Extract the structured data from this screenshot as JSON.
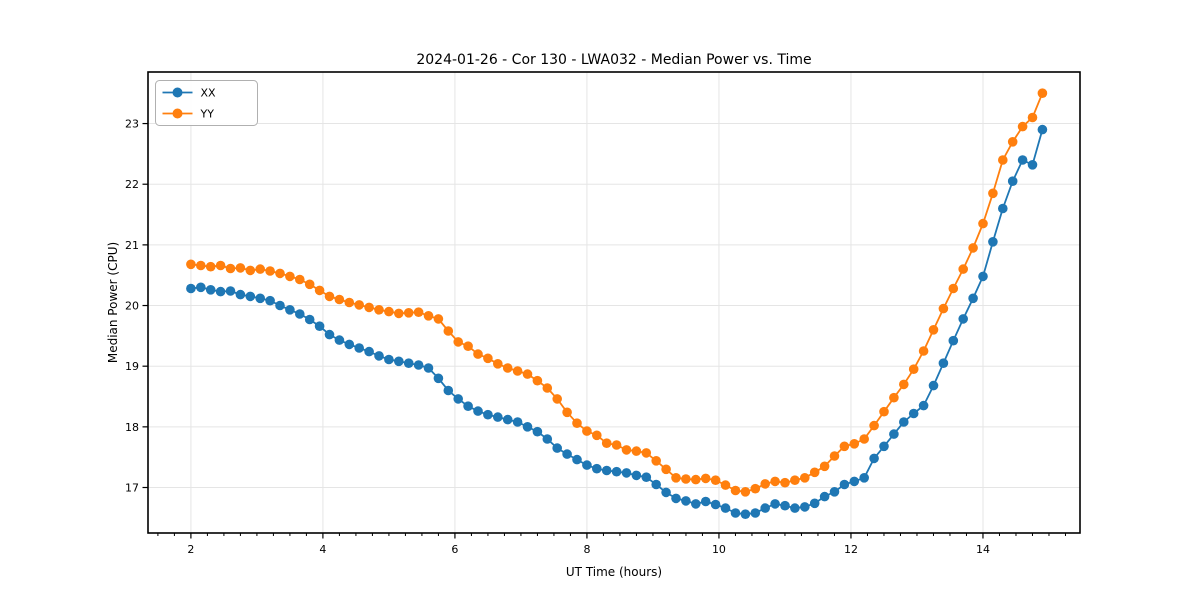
{
  "figure": {
    "background": "#ffffff"
  },
  "chart_data": {
    "type": "line",
    "title": "2024-01-26 - Cor 130 - LWA032 - Median Power vs. Time",
    "xlabel": "UT Time (hours)",
    "ylabel": "Median Power (CPU)",
    "xlim": [
      1.35,
      15.47
    ],
    "ylim": [
      16.25,
      23.85
    ],
    "xticks": [
      2,
      4,
      6,
      8,
      10,
      12,
      14
    ],
    "yticks": [
      17,
      18,
      19,
      20,
      21,
      22,
      23
    ],
    "x_minor_tick_step": 0.25,
    "grid": true,
    "grid_color": "#e5e5e5",
    "legend": {
      "position": "upper-left",
      "frame": true,
      "labels": [
        "XX",
        "YY"
      ]
    },
    "marker": "circle",
    "marker_size": 9.6,
    "line_width": 1.8,
    "x": [
      2,
      2.15,
      2.3,
      2.45,
      2.6,
      2.75,
      2.9,
      3.05,
      3.2,
      3.35,
      3.5,
      3.65,
      3.8,
      3.95,
      4.1,
      4.25,
      4.4,
      4.55,
      4.7,
      4.85,
      5,
      5.15,
      5.3,
      5.45,
      5.6,
      5.75,
      5.9,
      6.05,
      6.2,
      6.35,
      6.5,
      6.65,
      6.8,
      6.95,
      7.1,
      7.25,
      7.4,
      7.55,
      7.7,
      7.85,
      8,
      8.15,
      8.3,
      8.45,
      8.6,
      8.75,
      8.9,
      9.05,
      9.2,
      9.35,
      9.5,
      9.65,
      9.8,
      9.95,
      10.1,
      10.25,
      10.4,
      10.55,
      10.7,
      10.85,
      11,
      11.15,
      11.3,
      11.45,
      11.6,
      11.75,
      11.9,
      12.05,
      12.2,
      12.35,
      12.5,
      12.65,
      12.8,
      12.95,
      13.1,
      13.25,
      13.4,
      13.55,
      13.7,
      13.85,
      14,
      14.15,
      14.3,
      14.45,
      14.6,
      14.75,
      14.9
    ],
    "series": [
      {
        "name": "XX",
        "color": "#1f77b4",
        "values": [
          20.28,
          20.3,
          20.26,
          20.23,
          20.24,
          20.18,
          20.15,
          20.12,
          20.08,
          20.0,
          19.93,
          19.86,
          19.77,
          19.66,
          19.52,
          19.43,
          19.36,
          19.3,
          19.24,
          19.17,
          19.11,
          19.08,
          19.05,
          19.02,
          18.97,
          18.8,
          18.6,
          18.46,
          18.34,
          18.26,
          18.2,
          18.16,
          18.12,
          18.08,
          18.0,
          17.92,
          17.8,
          17.65,
          17.55,
          17.46,
          17.37,
          17.31,
          17.28,
          17.26,
          17.24,
          17.2,
          17.17,
          17.05,
          16.92,
          16.82,
          16.78,
          16.73,
          16.77,
          16.72,
          16.66,
          16.58,
          16.56,
          16.58,
          16.66,
          16.73,
          16.7,
          16.66,
          16.68,
          16.74,
          16.85,
          16.93,
          17.05,
          17.1,
          17.16,
          17.48,
          17.68,
          17.88,
          18.08,
          18.22,
          18.35,
          18.68,
          19.05,
          19.42,
          19.78,
          20.12,
          20.48,
          21.05,
          21.6,
          22.05,
          22.4,
          22.32,
          22.9
        ]
      },
      {
        "name": "YY",
        "color": "#ff7f0e",
        "values": [
          20.68,
          20.66,
          20.64,
          20.66,
          20.61,
          20.62,
          20.58,
          20.6,
          20.57,
          20.53,
          20.48,
          20.43,
          20.35,
          20.25,
          20.15,
          20.1,
          20.05,
          20.01,
          19.97,
          19.93,
          19.9,
          19.87,
          19.88,
          19.89,
          19.83,
          19.78,
          19.58,
          19.4,
          19.33,
          19.2,
          19.13,
          19.04,
          18.97,
          18.92,
          18.87,
          18.76,
          18.64,
          18.46,
          18.24,
          18.06,
          17.93,
          17.86,
          17.73,
          17.7,
          17.62,
          17.6,
          17.57,
          17.44,
          17.3,
          17.16,
          17.14,
          17.13,
          17.15,
          17.12,
          17.04,
          16.95,
          16.93,
          16.98,
          17.06,
          17.1,
          17.08,
          17.12,
          17.16,
          17.25,
          17.35,
          17.52,
          17.68,
          17.72,
          17.8,
          18.02,
          18.25,
          18.48,
          18.7,
          18.95,
          19.25,
          19.6,
          19.95,
          20.28,
          20.6,
          20.95,
          21.35,
          21.85,
          22.4,
          22.7,
          22.95,
          23.1,
          23.5
        ]
      }
    ]
  }
}
